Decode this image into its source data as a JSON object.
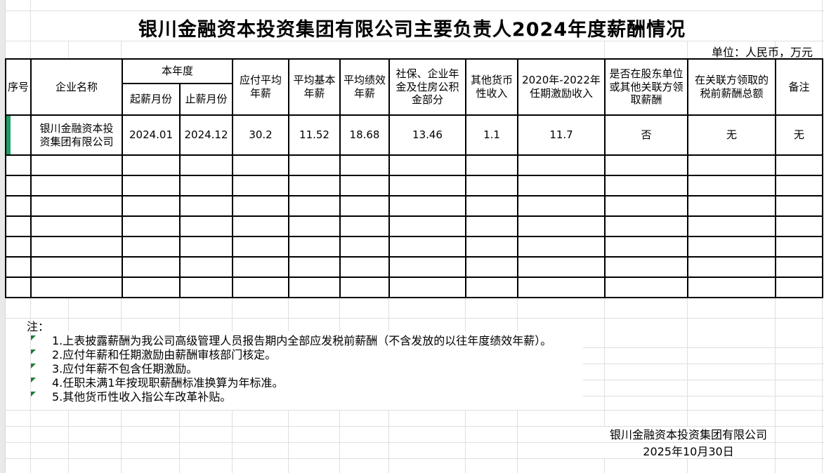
{
  "title": "银川金融资本投资集团有限公司主要负责人2024年度薪酬情况",
  "unit_note": "单位：人民币，万元",
  "table": {
    "headers": {
      "seq": "序号",
      "company": "企业名称",
      "current_year": "本年度",
      "start_month": "起薪月份",
      "end_month": "止薪月份",
      "avg_payable": "应付平均\n年薪",
      "avg_base": "平均基本\n年薪",
      "avg_perf": "平均绩效\n年薪",
      "social": "社保、企业年\n金及住房公积\n金部分",
      "other_income": "其他货币\n性收入",
      "incentive": "2020年-2022年\n任期激励收入",
      "related_flag": "是否在股东单位\n或其他关联方领\n取薪酬",
      "related_amount": "在关联方领取的\n税前薪酬总额",
      "remark": "备注"
    },
    "row": {
      "seq": "",
      "company": "银川金融资本投\n资集团有限公司",
      "start_month": "2024.01",
      "end_month": "2024.12",
      "avg_payable": "30.2",
      "avg_base": "11.52",
      "avg_perf": "18.68",
      "social": "13.46",
      "other_income": "1.1",
      "incentive": "11.7",
      "related_flag": "否",
      "related_amount": "无",
      "remark": "无"
    },
    "empty_row_count": 7
  },
  "notes": {
    "label": "注：",
    "items": [
      "1.上表披露薪酬为我公司高级管理人员报告期内全部应发税前薪酬（不含发放的以往年度绩效年薪）。",
      "2.应付年薪和任期激励由薪酬审核部门核定。",
      "3.应付年薪不包含任期激励。",
      "4.任职未满1年按现职薪酬标准换算为年标准。",
      "5.其他货币性收入指公车改革补贴。"
    ]
  },
  "footer": {
    "company": "银川金融资本投资集团有限公司",
    "date": "2025年10月30日"
  },
  "colors": {
    "selection_green": "#1e9e64",
    "flag_triangle_green": "#217a36",
    "gridline": "#dfdfdf",
    "table_border": "#000000"
  }
}
